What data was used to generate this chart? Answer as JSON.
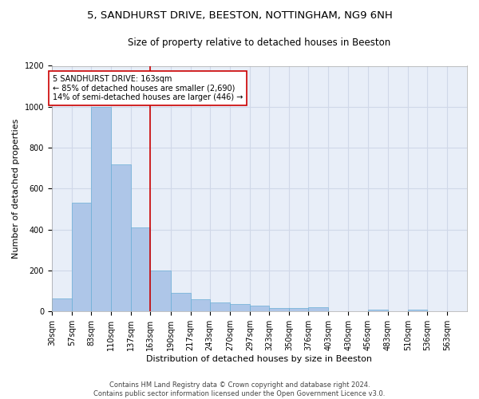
{
  "title": "5, SANDHURST DRIVE, BEESTON, NOTTINGHAM, NG9 6NH",
  "subtitle": "Size of property relative to detached houses in Beeston",
  "xlabel": "Distribution of detached houses by size in Beeston",
  "ylabel": "Number of detached properties",
  "footer_line1": "Contains HM Land Registry data © Crown copyright and database right 2024.",
  "footer_line2": "Contains public sector information licensed under the Open Government Licence v3.0.",
  "bar_edges": [
    30,
    57,
    83,
    110,
    137,
    163,
    190,
    217,
    243,
    270,
    297,
    323,
    350,
    376,
    403,
    430,
    456,
    483,
    510,
    536,
    563,
    590
  ],
  "bar_heights": [
    65,
    530,
    1000,
    720,
    410,
    200,
    90,
    60,
    45,
    35,
    30,
    18,
    18,
    20,
    2,
    2,
    10,
    2,
    10,
    2,
    2
  ],
  "bar_color": "#aec6e8",
  "bar_edgecolor": "#6aafd6",
  "vline_x": 163,
  "vline_color": "#cc0000",
  "annotation_text": "5 SANDHURST DRIVE: 163sqm\n← 85% of detached houses are smaller (2,690)\n14% of semi-detached houses are larger (446) →",
  "annotation_box_edgecolor": "#cc0000",
  "ylim": [
    0,
    1200
  ],
  "yticks": [
    0,
    200,
    400,
    600,
    800,
    1000,
    1200
  ],
  "tick_labels": [
    "30sqm",
    "57sqm",
    "83sqm",
    "110sqm",
    "137sqm",
    "163sqm",
    "190sqm",
    "217sqm",
    "243sqm",
    "270sqm",
    "297sqm",
    "323sqm",
    "350sqm",
    "376sqm",
    "403sqm",
    "430sqm",
    "456sqm",
    "483sqm",
    "510sqm",
    "536sqm",
    "563sqm"
  ],
  "grid_color": "#d0d8e8",
  "background_color": "#e8eef8",
  "title_fontsize": 9.5,
  "subtitle_fontsize": 8.5,
  "xlabel_fontsize": 8,
  "ylabel_fontsize": 8,
  "tick_fontsize": 7,
  "annotation_fontsize": 7,
  "footer_fontsize": 6
}
